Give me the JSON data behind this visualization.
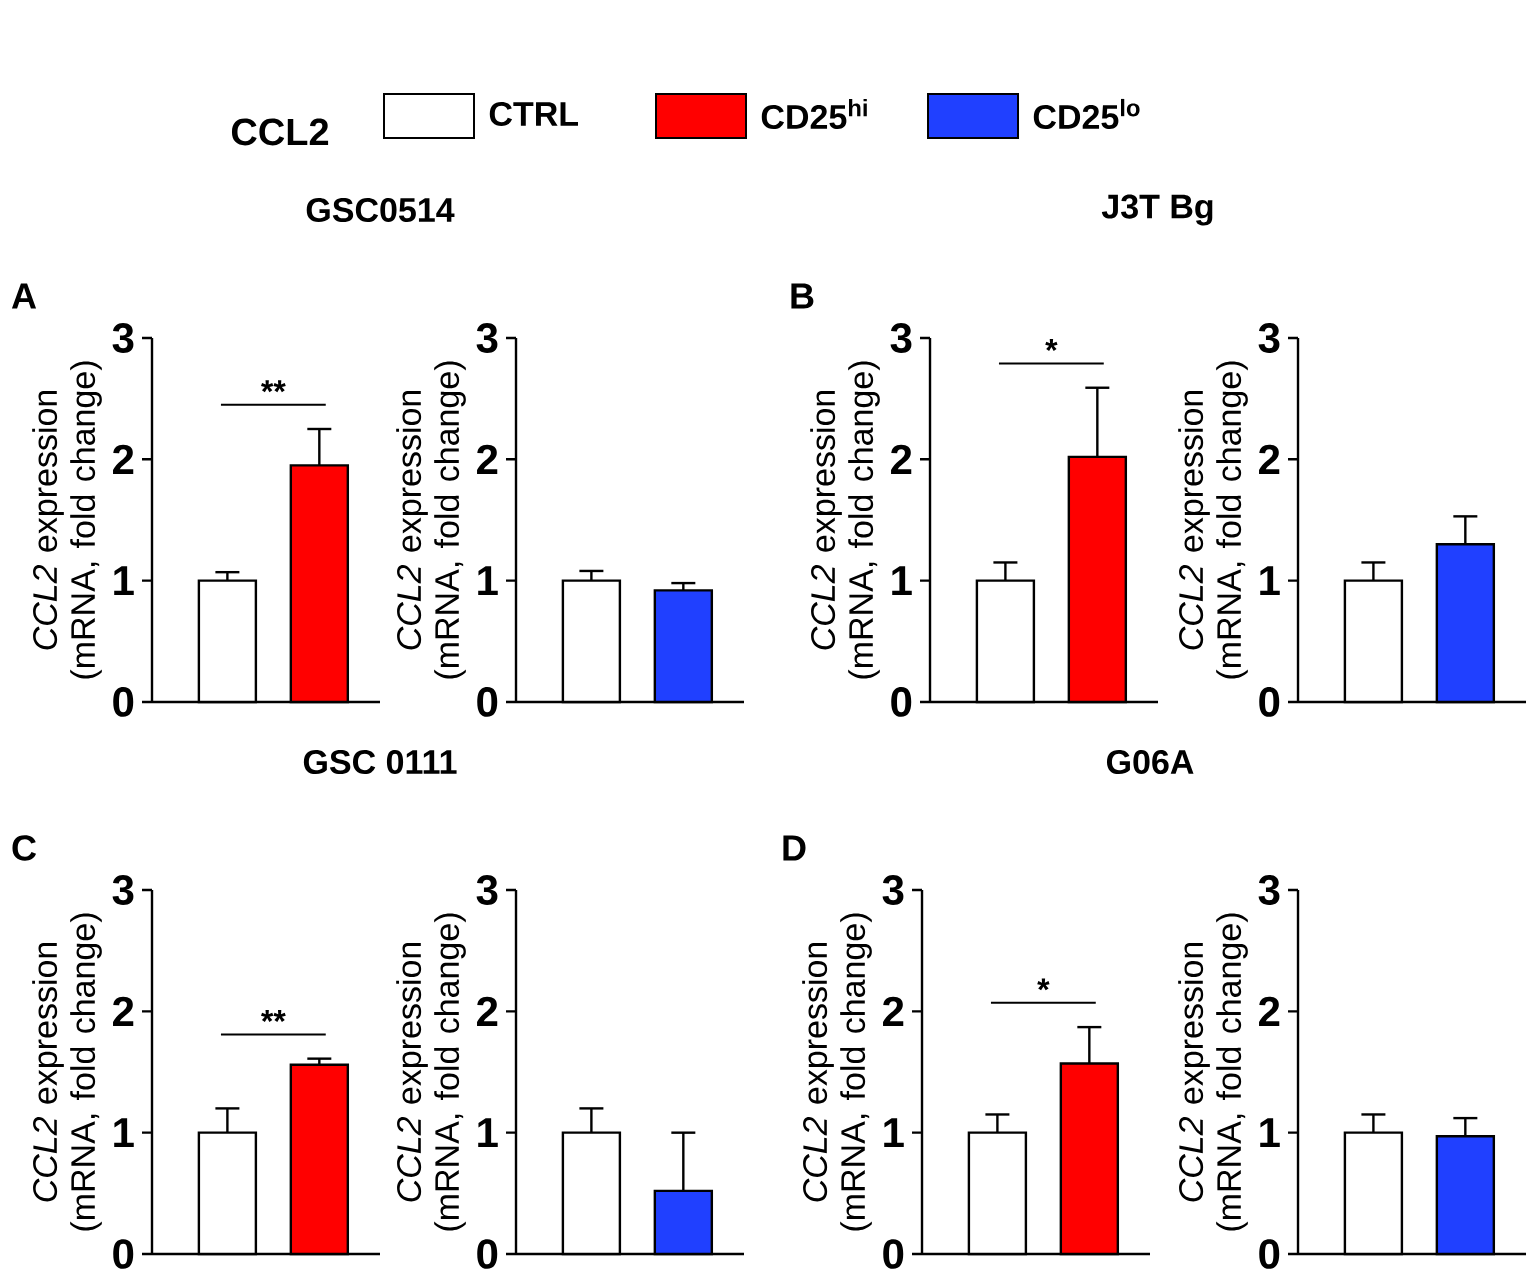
{
  "chart_data": [
    {
      "type": "other",
      "legend_title": "CCL2",
      "categories": [
        "CTRL",
        "CD25$^{hi}$",
        "CD25$^{lo}$"
      ],
      "colors": [
        "#ffffff",
        "#ff0000",
        "#2040ff"
      ]
    },
    {
      "type": "bar",
      "title": "GSC0514",
      "annotations": [
        "A",
        "**"
      ],
      "categories": [
        null,
        null
      ],
      "values": [
        1.0,
        1.95
      ],
      "colors": [
        "#ffffff",
        "#ff0000"
      ],
      "errors": [
        [
          1.0,
          1.07
        ],
        [
          1.95,
          2.25
        ]
      ],
      "ylabel": "*CCL2* expression (mRNA, fold change)",
      "ylim": [
        0,
        3
      ],
      "yticks": [
        0,
        1,
        2,
        3
      ]
    },
    {
      "type": "bar",
      "categories": [
        null,
        null
      ],
      "values": [
        1.0,
        0.92
      ],
      "colors": [
        "#ffffff",
        "#2040ff"
      ],
      "errors": [
        [
          1.0,
          1.08
        ],
        [
          0.92,
          0.98
        ]
      ],
      "ylabel": "*CCL2* expression (mRNA, fold change)",
      "ylim": [
        0,
        3
      ],
      "yticks": [
        0,
        1,
        2,
        3
      ]
    },
    {
      "type": "bar",
      "title": "J3T Bg",
      "annotations": [
        "B",
        "*"
      ],
      "categories": [
        null,
        null
      ],
      "values": [
        1.0,
        2.02
      ],
      "colors": [
        "#ffffff",
        "#ff0000"
      ],
      "errors": [
        [
          1.0,
          1.15
        ],
        [
          2.02,
          2.59
        ]
      ],
      "ylabel": "*CCL2* expression (mRNA, fold change)",
      "ylim": [
        0,
        3
      ],
      "yticks": [
        0,
        1,
        2,
        3
      ]
    },
    {
      "type": "bar",
      "categories": [
        null,
        null
      ],
      "values": [
        1.0,
        1.3
      ],
      "colors": [
        "#ffffff",
        "#2040ff"
      ],
      "errors": [
        [
          1.0,
          1.15
        ],
        [
          1.3,
          1.53
        ]
      ],
      "ylabel": "*CCL2* expression (mRNA, fold change)",
      "ylim": [
        0,
        3
      ],
      "yticks": [
        0,
        1,
        2,
        3
      ]
    },
    {
      "type": "bar",
      "title": "GSC 0111",
      "annotations": [
        "C",
        "**"
      ],
      "categories": [
        null,
        null
      ],
      "values": [
        1.0,
        1.56
      ],
      "colors": [
        "#ffffff",
        "#ff0000"
      ],
      "errors": [
        [
          1.0,
          1.2
        ],
        [
          1.56,
          1.61
        ]
      ],
      "ylabel": "*CCL2* expression (mRNA, fold change)",
      "ylim": [
        0,
        3
      ],
      "yticks": [
        0,
        1,
        2,
        3
      ]
    },
    {
      "type": "bar",
      "categories": [
        null,
        null
      ],
      "values": [
        1.0,
        0.52
      ],
      "colors": [
        "#ffffff",
        "#2040ff"
      ],
      "errors": [
        [
          1.0,
          1.2
        ],
        [
          0.52,
          1.0
        ]
      ],
      "ylabel": "*CCL2* expression (mRNA, fold change)",
      "ylim": [
        0,
        3
      ],
      "yticks": [
        0,
        1,
        2,
        3
      ]
    },
    {
      "type": "bar",
      "title": "G06A",
      "annotations": [
        "D",
        "*"
      ],
      "categories": [
        null,
        null
      ],
      "values": [
        1.0,
        1.57
      ],
      "colors": [
        "#ffffff",
        "#ff0000"
      ],
      "errors": [
        [
          1.0,
          1.15
        ],
        [
          1.57,
          1.87
        ]
      ],
      "ylabel": "*CCL2* expression (mRNA, fold change)",
      "ylim": [
        0,
        3
      ],
      "yticks": [
        0,
        1,
        2,
        3
      ]
    },
    {
      "type": "bar",
      "categories": [
        null,
        null
      ],
      "values": [
        1.0,
        0.97
      ],
      "colors": [
        "#ffffff",
        "#2040ff"
      ],
      "errors": [
        [
          1.0,
          1.15
        ],
        [
          0.97,
          1.12
        ]
      ],
      "ylabel": "*CCL2* expression (mRNA, fold change)",
      "ylim": [
        0,
        3
      ],
      "yticks": [
        0,
        1,
        2,
        3
      ]
    }
  ]
}
